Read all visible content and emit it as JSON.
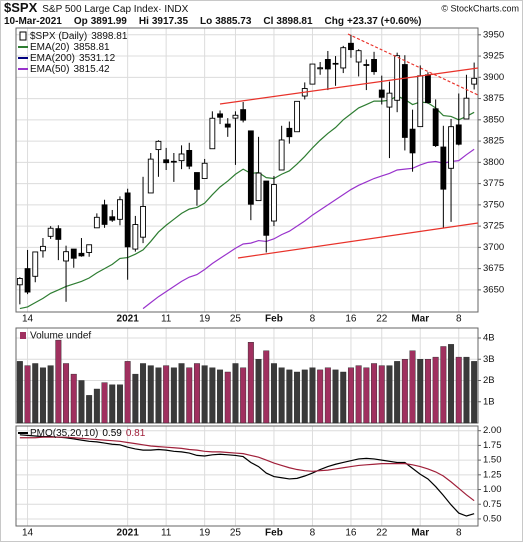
{
  "header": {
    "symbol": "$SPX",
    "name": "S&P 500 Large Cap Index· INDX",
    "credit": "© StockCharts.com",
    "date": "10-Mar-2021",
    "open_label": "Op",
    "high_label": "Hi",
    "low_label": "Lo",
    "close_label": "Cl",
    "change_label": "Chg",
    "change": "+23.37 (+0.60%)"
  },
  "chart_data": [
    {
      "type": "candlestick",
      "name": "$SPX (Daily)",
      "color": "#000000",
      "categories": [
        null,
        "14",
        null,
        null,
        null,
        null,
        null,
        null,
        null,
        null,
        null,
        null,
        null,
        null,
        "2021",
        null,
        null,
        null,
        null,
        "11",
        null,
        null,
        null,
        null,
        "19",
        null,
        null,
        null,
        "25",
        null,
        null,
        null,
        null,
        "Feb",
        null,
        null,
        null,
        null,
        "8",
        null,
        null,
        null,
        null,
        "16",
        null,
        null,
        null,
        "22",
        null,
        null,
        null,
        null,
        "Mar",
        null,
        null,
        null,
        null,
        "8",
        null,
        null
      ],
      "open": [
        3656,
        3675,
        3666,
        3696,
        3713,
        3722,
        3684,
        3698,
        3693,
        3694,
        3723,
        3750,
        3736,
        3733,
        3764,
        3698,
        3712,
        3764,
        3815,
        3803,
        3801,
        3802,
        3814,
        3788,
        3781,
        3816,
        3857,
        3845,
        3852,
        3862,
        3837,
        3755,
        3778,
        3731,
        3791,
        3840,
        3836,
        3878,
        3892,
        3910,
        3921,
        3916,
        3911,
        3940,
        3918,
        3915,
        3921,
        3885,
        3865,
        3873,
        3915,
        3839,
        3842,
        3903,
        3863,
        3818,
        3793,
        3844,
        3851,
        3891.99
      ],
      "high": [
        3665,
        3697,
        3695,
        3711,
        3725,
        3726,
        3702,
        3698,
        3711,
        3703,
        3740,
        3756,
        3744,
        3760,
        3769,
        3737,
        3783,
        3811,
        3826,
        3817,
        3811,
        3820,
        3823,
        3788,
        3804,
        3860,
        3861,
        3852,
        3860,
        3871,
        3837,
        3830,
        3778,
        3784,
        3843,
        3848,
        3872,
        3894,
        3915,
        3918,
        3931,
        3925,
        3937,
        3950,
        3933,
        3921,
        3930,
        3902,
        3895,
        3929,
        3926,
        3862,
        3914,
        3906,
        3874,
        3843,
        3851,
        3881,
        3903,
        3917.35
      ],
      "low": [
        3633,
        3645,
        3659,
        3688,
        3710,
        3685,
        3636,
        3676,
        3689,
        3689,
        3723,
        3723,
        3730,
        3726,
        3662,
        3695,
        3705,
        3764,
        3783,
        3791,
        3777,
        3792,
        3792,
        3749,
        3781,
        3816,
        3845,
        3830,
        3797,
        3847,
        3732,
        3755,
        3694,
        3725,
        3791,
        3822,
        3836,
        3874,
        3892,
        3903,
        3885,
        3890,
        3905,
        3923,
        3901,
        3885,
        3903,
        3868,
        3805,
        3859,
        3814,
        3789,
        3842,
        3869,
        3818,
        3723,
        3730,
        3820,
        3851,
        3885.73
      ],
      "close": [
        3663.46,
        3647.49,
        3694.62,
        3701.17,
        3722.48,
        3709.41,
        3694.92,
        3687.26,
        3690.01,
        3703.06,
        3735.36,
        3727.04,
        3732.04,
        3756.07,
        3700.65,
        3726.86,
        3748.14,
        3803.79,
        3824.68,
        3799.61,
        3801.19,
        3809.84,
        3795.54,
        3768.25,
        3798.91,
        3851.85,
        3853.07,
        3841.47,
        3855.36,
        3849.62,
        3750.77,
        3787.38,
        3714.24,
        3773.86,
        3826.31,
        3830.17,
        3871.74,
        3886.83,
        3915.59,
        3911.23,
        3909.88,
        3916.38,
        3934.83,
        3932.59,
        3931.33,
        3913.97,
        3906.71,
        3876.5,
        3881.37,
        3925.43,
        3829.34,
        3811.15,
        3901.82,
        3870.29,
        3819.72,
        3768.47,
        3841.94,
        3821.35,
        3875.44,
        3898.81
      ],
      "series": [
        {
          "name": "EMA(20)",
          "color": "#2e7d32",
          "values": [
            3628,
            3630,
            3635,
            3640,
            3646,
            3650,
            3654,
            3657,
            3660,
            3664,
            3670,
            3675,
            3680,
            3687,
            3688,
            3692,
            3697,
            3707,
            3718,
            3726,
            3733,
            3740,
            3745,
            3747,
            3752,
            3762,
            3771,
            3778,
            3786,
            3792,
            3787,
            3788,
            3782,
            3781,
            3786,
            3790,
            3798,
            3807,
            3817,
            3826,
            3834,
            3841,
            3850,
            3857,
            3864,
            3868,
            3872,
            3872,
            3873,
            3878,
            3874,
            3868,
            3871,
            3870,
            3864,
            3855,
            3854,
            3850,
            3854,
            3858.81
          ]
        },
        {
          "name": "EMA(200)",
          "color": "#000080",
          "last": 3531.12
        },
        {
          "name": "EMA(50)",
          "color": "#9933cc",
          "values": [
            null,
            null,
            null,
            null,
            null,
            null,
            null,
            null,
            null,
            null,
            null,
            null,
            null,
            null,
            null,
            null,
            3628,
            3635,
            3642,
            3648,
            3654,
            3660,
            3665,
            3668,
            3674,
            3681,
            3687,
            3693,
            3699,
            3704,
            3705,
            3708,
            3707,
            3710,
            3715,
            3719,
            3725,
            3731,
            3738,
            3744,
            3750,
            3756,
            3762,
            3768,
            3773,
            3777,
            3781,
            3784,
            3787,
            3791,
            3792,
            3793,
            3797,
            3800,
            3801,
            3799,
            3801,
            3802,
            3809,
            3815.42
          ]
        }
      ],
      "ylim": [
        3624,
        3958
      ],
      "yticks": [
        3650,
        3675,
        3700,
        3725,
        3750,
        3775,
        3800,
        3825,
        3850,
        3875,
        3900,
        3925,
        3950
      ],
      "grid": true
    },
    {
      "type": "bar",
      "title": "Volume undef",
      "up_color": "#3a3a3a",
      "down_color": "#a0305f",
      "values": [
        2.9,
        2.7,
        2.8,
        2.6,
        2.7,
        3.9,
        2.8,
        2.3,
        2.0,
        1.3,
        1.6,
        1.9,
        1.8,
        1.8,
        2.9,
        2.3,
        2.8,
        2.7,
        2.6,
        2.7,
        2.6,
        2.8,
        2.6,
        2.8,
        2.7,
        2.6,
        2.5,
        2.4,
        2.8,
        2.6,
        3.8,
        3.0,
        3.4,
        2.8,
        2.6,
        2.5,
        2.4,
        2.5,
        2.6,
        2.5,
        2.6,
        2.5,
        2.4,
        2.6,
        2.7,
        2.6,
        2.8,
        2.7,
        2.7,
        2.9,
        3.0,
        3.4,
        3.0,
        3.0,
        3.1,
        3.6,
        3.7,
        3.1,
        3.1,
        2.9
      ],
      "ylim": [
        0,
        4.47
      ],
      "yticks": [
        {
          "value": 1,
          "label": "1B"
        },
        {
          "value": 2,
          "label": "2B"
        },
        {
          "value": 3,
          "label": "3B"
        },
        {
          "value": 4,
          "label": "4B"
        }
      ],
      "grid": true
    },
    {
      "type": "line",
      "title": "PMO(35,20,10)",
      "series": [
        {
          "color": "#000000",
          "values": [
            1.93,
            1.92,
            1.91,
            1.9,
            1.9,
            1.89,
            1.88,
            1.86,
            1.84,
            1.82,
            1.81,
            1.79,
            1.77,
            1.76,
            1.72,
            1.69,
            1.67,
            1.67,
            1.68,
            1.67,
            1.65,
            1.64,
            1.62,
            1.58,
            1.57,
            1.59,
            1.6,
            1.59,
            1.58,
            1.56,
            1.46,
            1.39,
            1.28,
            1.22,
            1.2,
            1.18,
            1.19,
            1.23,
            1.28,
            1.34,
            1.39,
            1.43,
            1.46,
            1.49,
            1.52,
            1.53,
            1.52,
            1.5,
            1.48,
            1.46,
            1.46,
            1.36,
            1.26,
            1.18,
            1.05,
            0.9,
            0.74,
            0.6,
            0.55,
            0.59
          ]
        },
        {
          "color": "#a0203a",
          "values": [
            1.88,
            1.88,
            1.88,
            1.89,
            1.89,
            1.89,
            1.89,
            1.88,
            1.87,
            1.86,
            1.85,
            1.84,
            1.83,
            1.82,
            1.8,
            1.78,
            1.76,
            1.74,
            1.73,
            1.72,
            1.71,
            1.7,
            1.68,
            1.67,
            1.65,
            1.64,
            1.64,
            1.63,
            1.62,
            1.61,
            1.58,
            1.55,
            1.5,
            1.45,
            1.41,
            1.37,
            1.34,
            1.32,
            1.31,
            1.32,
            1.33,
            1.35,
            1.37,
            1.39,
            1.41,
            1.42,
            1.43,
            1.44,
            1.44,
            1.44,
            1.44,
            1.42,
            1.39,
            1.35,
            1.3,
            1.23,
            1.13,
            1.02,
            0.91,
            0.81
          ]
        }
      ],
      "ylim": [
        0.38,
        2.08
      ],
      "yticks": [
        {
          "value": 0.5,
          "label": "0.50"
        },
        0.75,
        {
          "value": 1,
          "label": "1.00"
        },
        1.25,
        {
          "value": 1.5,
          "label": "1.50"
        },
        1.75,
        {
          "value": 2,
          "label": "2.00"
        }
      ],
      "grid": true
    }
  ]
}
